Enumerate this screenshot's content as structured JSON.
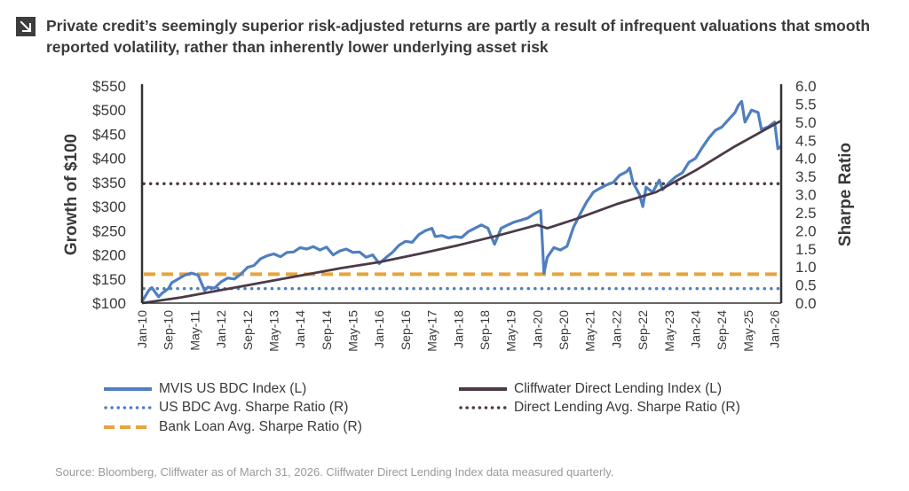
{
  "title": "Private credit’s seemingly superior risk-adjusted returns are partly a result of infrequent valuations that smooth reported volatility, rather than inherently lower underlying asset risk",
  "title_icon": "arrow-down-right-icon",
  "source": "Source: Bloomberg, Cliffwater as of March 31, 2026. Cliffwater Direct Lending Index data measured quarterly.",
  "chart_data": {
    "type": "line",
    "yleft": {
      "label": "Growth of $100",
      "range": [
        100,
        550
      ],
      "ticks": [
        "$100",
        "$150",
        "$200",
        "$250",
        "$300",
        "$350",
        "$400",
        "$450",
        "$500",
        "$550"
      ]
    },
    "yright": {
      "label": "Sharpe Ratio",
      "range": [
        0,
        6
      ],
      "ticks": [
        "0.0",
        "0.5",
        "1.0",
        "1.5",
        "2.0",
        "2.5",
        "3.0",
        "3.5",
        "4.0",
        "4.5",
        "5.0",
        "5.5",
        "6.0"
      ]
    },
    "x": {
      "range": [
        "Jan-10",
        "Mar-26"
      ],
      "ticks": [
        "Jan-10",
        "Sep-10",
        "May-11",
        "Jan-12",
        "Sep-12",
        "May-13",
        "Jan-14",
        "Sep-14",
        "May-15",
        "Jan-16",
        "Sep-16",
        "May-17",
        "Jan-18",
        "Sep-18",
        "May-19",
        "Jan-20",
        "Sep-20",
        "May-21",
        "Jan-22",
        "Sep-22",
        "May-23",
        "Jan-24",
        "Sep-24",
        "May-25",
        "Jan-26"
      ]
    },
    "series": [
      {
        "name": "MVIS US BDC Index (L)",
        "axis": "left",
        "color": "#4f7fbf",
        "style": "solid",
        "points": [
          [
            "Jan-10",
            103
          ],
          [
            "Mar-10",
            126
          ],
          [
            "Apr-10",
            132
          ],
          [
            "Jun-10",
            113
          ],
          [
            "Jul-10",
            120
          ],
          [
            "Sep-10",
            130
          ],
          [
            "Oct-10",
            142
          ],
          [
            "Dec-10",
            150
          ],
          [
            "Feb-11",
            158
          ],
          [
            "Apr-11",
            162
          ],
          [
            "Jun-11",
            158
          ],
          [
            "Aug-11",
            126
          ],
          [
            "Sep-11",
            133
          ],
          [
            "Nov-11",
            131
          ],
          [
            "Jan-12",
            144
          ],
          [
            "Mar-12",
            152
          ],
          [
            "May-12",
            150
          ],
          [
            "Jul-12",
            160
          ],
          [
            "Sep-12",
            174
          ],
          [
            "Nov-12",
            178
          ],
          [
            "Jan-13",
            192
          ],
          [
            "Mar-13",
            198
          ],
          [
            "May-13",
            202
          ],
          [
            "Jul-13",
            196
          ],
          [
            "Sep-13",
            205
          ],
          [
            "Nov-13",
            206
          ],
          [
            "Jan-14",
            215
          ],
          [
            "Mar-14",
            212
          ],
          [
            "May-14",
            217
          ],
          [
            "Jul-14",
            210
          ],
          [
            "Sep-14",
            216
          ],
          [
            "Nov-14",
            200
          ],
          [
            "Jan-15",
            208
          ],
          [
            "Mar-15",
            212
          ],
          [
            "May-15",
            205
          ],
          [
            "Jul-15",
            206
          ],
          [
            "Sep-15",
            195
          ],
          [
            "Nov-15",
            200
          ],
          [
            "Jan-16",
            182
          ],
          [
            "Mar-16",
            194
          ],
          [
            "May-16",
            205
          ],
          [
            "Jul-16",
            220
          ],
          [
            "Sep-16",
            228
          ],
          [
            "Nov-16",
            226
          ],
          [
            "Jan-17",
            242
          ],
          [
            "Mar-17",
            250
          ],
          [
            "May-17",
            255
          ],
          [
            "Jun-17",
            238
          ],
          [
            "Aug-17",
            240
          ],
          [
            "Oct-17",
            235
          ],
          [
            "Dec-17",
            238
          ],
          [
            "Feb-18",
            236
          ],
          [
            "Apr-18",
            248
          ],
          [
            "Jun-18",
            255
          ],
          [
            "Aug-18",
            262
          ],
          [
            "Oct-18",
            255
          ],
          [
            "Dec-18",
            222
          ],
          [
            "Feb-19",
            255
          ],
          [
            "Apr-19",
            262
          ],
          [
            "Jun-19",
            268
          ],
          [
            "Aug-19",
            272
          ],
          [
            "Oct-19",
            276
          ],
          [
            "Dec-19",
            285
          ],
          [
            "Feb-20",
            292
          ],
          [
            "Mar-20",
            162
          ],
          [
            "Apr-20",
            195
          ],
          [
            "Jun-20",
            215
          ],
          [
            "Aug-20",
            210
          ],
          [
            "Oct-20",
            218
          ],
          [
            "Dec-20",
            258
          ],
          [
            "Feb-21",
            285
          ],
          [
            "Apr-21",
            310
          ],
          [
            "Jun-21",
            330
          ],
          [
            "Aug-21",
            338
          ],
          [
            "Oct-21",
            345
          ],
          [
            "Dec-21",
            350
          ],
          [
            "Feb-22",
            365
          ],
          [
            "Apr-22",
            372
          ],
          [
            "May-22",
            380
          ],
          [
            "Jun-22",
            350
          ],
          [
            "Aug-22",
            325
          ],
          [
            "Sep-22",
            300
          ],
          [
            "Oct-22",
            340
          ],
          [
            "Dec-22",
            330
          ],
          [
            "Feb-23",
            355
          ],
          [
            "Mar-23",
            335
          ],
          [
            "May-23",
            350
          ],
          [
            "Jul-23",
            362
          ],
          [
            "Sep-23",
            370
          ],
          [
            "Nov-23",
            392
          ],
          [
            "Jan-24",
            400
          ],
          [
            "Mar-24",
            422
          ],
          [
            "May-24",
            442
          ],
          [
            "Jul-24",
            458
          ],
          [
            "Sep-24",
            465
          ],
          [
            "Nov-24",
            480
          ],
          [
            "Jan-25",
            495
          ],
          [
            "Feb-25",
            510
          ],
          [
            "Mar-25",
            518
          ],
          [
            "Apr-25",
            475
          ],
          [
            "Jun-25",
            500
          ],
          [
            "Aug-25",
            495
          ],
          [
            "Sep-25",
            460
          ],
          [
            "Nov-25",
            465
          ],
          [
            "Jan-26",
            475
          ],
          [
            "Feb-26",
            420
          ],
          [
            "Mar-26",
            425
          ]
        ]
      },
      {
        "name": "Cliffwater Direct Lending Index (L)",
        "axis": "left",
        "color": "#4b3a47",
        "style": "solid",
        "points": [
          [
            "Jan-10",
            100
          ],
          [
            "Jan-11",
            112
          ],
          [
            "Jan-12",
            127
          ],
          [
            "Jan-13",
            142
          ],
          [
            "Jan-14",
            157
          ],
          [
            "Jan-15",
            172
          ],
          [
            "Jan-16",
            185
          ],
          [
            "Jan-17",
            202
          ],
          [
            "Jan-18",
            220
          ],
          [
            "Jan-19",
            240
          ],
          [
            "Jan-20",
            262
          ],
          [
            "Apr-20",
            255
          ],
          [
            "Jan-21",
            275
          ],
          [
            "Jan-22",
            305
          ],
          [
            "Jan-23",
            330
          ],
          [
            "Jan-24",
            375
          ],
          [
            "Jan-25",
            425
          ],
          [
            "Mar-26",
            478
          ]
        ]
      },
      {
        "name": "US BDC Avg. Sharpe Ratio (R)",
        "axis": "right",
        "color": "#4f7fbf",
        "style": "dotted",
        "value": 0.4
      },
      {
        "name": "Direct Lending Avg. Sharpe Ratio (R)",
        "axis": "right",
        "color": "#4b3a47",
        "style": "dotted",
        "value": 3.3
      },
      {
        "name": "Bank Loan Avg. Sharpe Ratio (R)",
        "axis": "right",
        "color": "#e8a33c",
        "style": "dashed",
        "value": 0.8
      }
    ]
  }
}
